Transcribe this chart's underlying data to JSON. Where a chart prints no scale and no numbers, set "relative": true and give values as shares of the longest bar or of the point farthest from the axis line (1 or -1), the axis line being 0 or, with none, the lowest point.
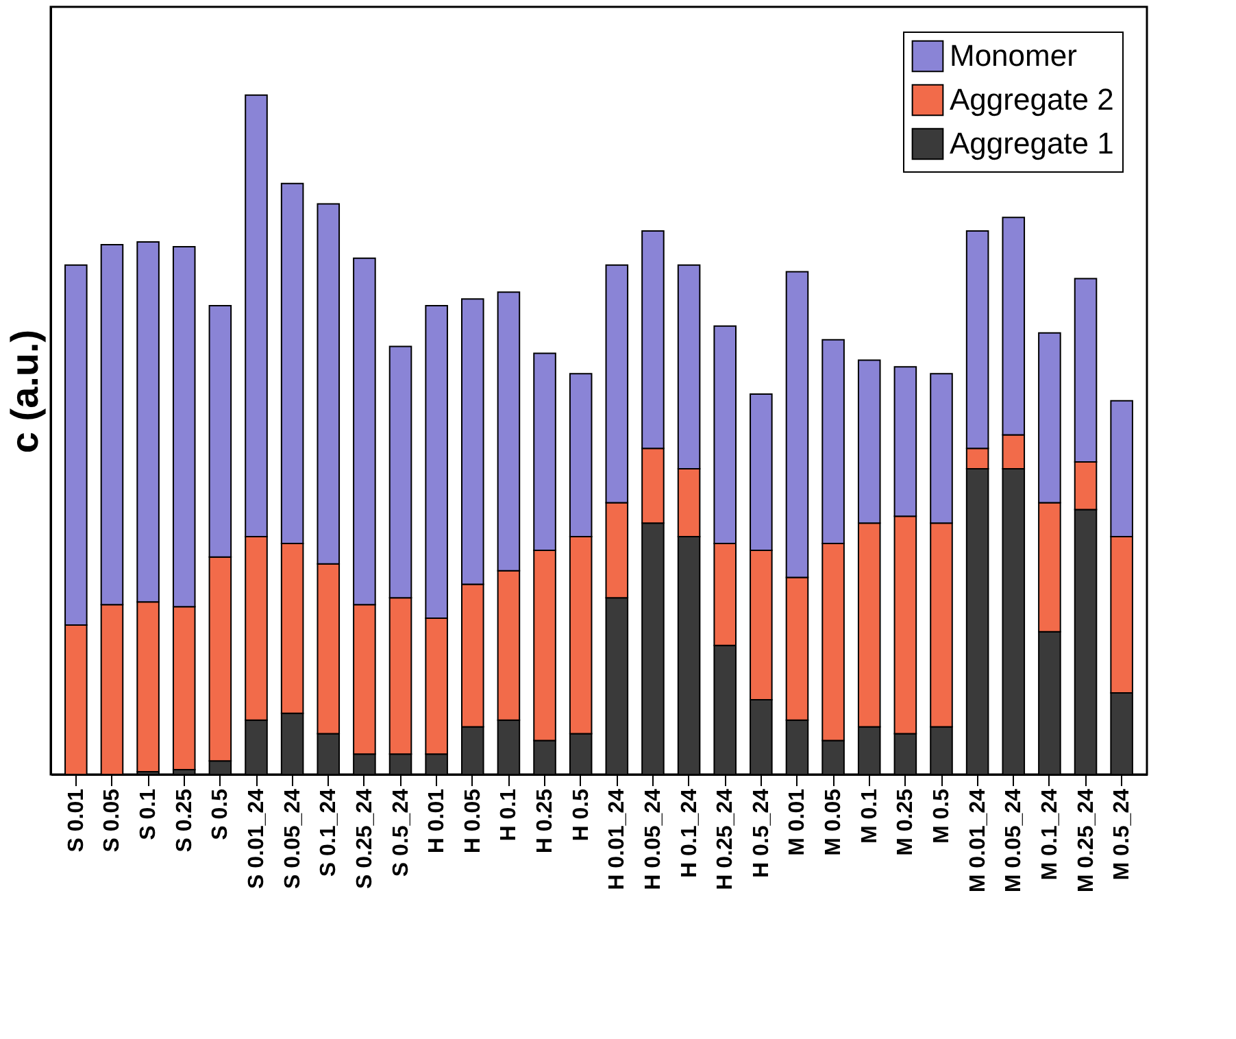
{
  "chart_data": {
    "type": "bar",
    "ylabel": "c (a.u.)",
    "relative": true,
    "stacked": true,
    "legend": "top right",
    "categories": [
      "S 0.01",
      "S 0.05",
      "S 0.1",
      "S 0.25",
      "S 0.5",
      "S 0.01_24",
      "S 0.05_24",
      "S 0.1_24",
      "S 0.25_24",
      "S 0.5_24",
      "H 0.01",
      "H 0.05",
      "H 0.1",
      "H 0.25",
      "H 0.5",
      "H 0.01_24",
      "H 0.05_24",
      "H 0.1_24",
      "H 0.25_24",
      "H 0.5_24",
      "M 0.01",
      "M 0.05",
      "M 0.1",
      "M 0.25",
      "M 0.5",
      "M 0.01_24",
      "M 0.05_24",
      "M 0.1_24",
      "M 0.25_24",
      "M 0.5_24"
    ],
    "series": [
      {
        "name": "Aggregate 1",
        "color": "#3a3a3a",
        "values": [
          0,
          0,
          0.004,
          0.007,
          0.02,
          0.08,
          0.09,
          0.06,
          0.03,
          0.03,
          0.03,
          0.07,
          0.08,
          0.05,
          0.06,
          0.26,
          0.37,
          0.35,
          0.19,
          0.11,
          0.08,
          0.05,
          0.07,
          0.06,
          0.07,
          0.45,
          0.45,
          0.21,
          0.39,
          0.12
        ]
      },
      {
        "name": "Aggregate 2",
        "color": "#f26b4a",
        "values": [
          0.22,
          0.25,
          0.25,
          0.24,
          0.3,
          0.27,
          0.25,
          0.25,
          0.22,
          0.23,
          0.2,
          0.21,
          0.22,
          0.28,
          0.29,
          0.14,
          0.11,
          0.1,
          0.15,
          0.22,
          0.21,
          0.29,
          0.3,
          0.32,
          0.3,
          0.03,
          0.05,
          0.19,
          0.07,
          0.23
        ]
      },
      {
        "name": "Monomer",
        "color": "#8a84d6",
        "values": [
          0.53,
          0.53,
          0.53,
          0.53,
          0.37,
          0.65,
          0.53,
          0.53,
          0.51,
          0.37,
          0.46,
          0.42,
          0.41,
          0.29,
          0.24,
          0.35,
          0.32,
          0.3,
          0.32,
          0.23,
          0.45,
          0.3,
          0.24,
          0.22,
          0.22,
          0.32,
          0.32,
          0.25,
          0.27,
          0.2
        ]
      }
    ]
  }
}
